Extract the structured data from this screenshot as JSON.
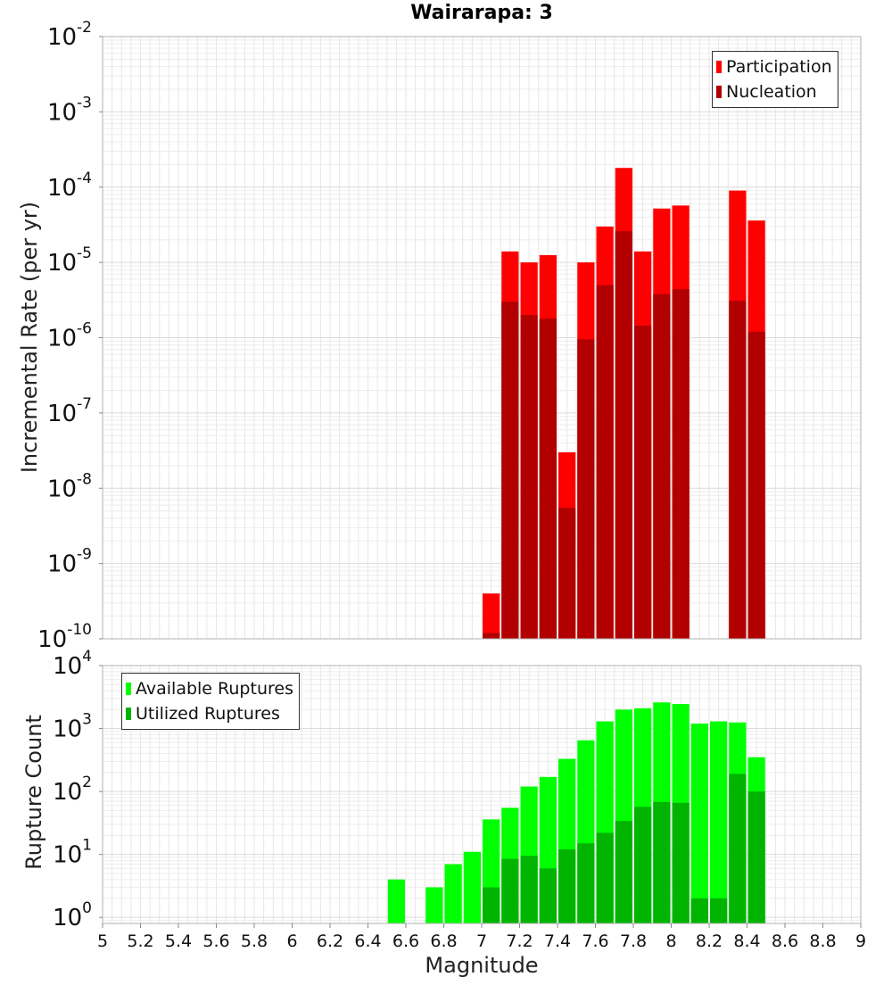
{
  "chart_data": [
    {
      "type": "bar",
      "title": "Wairarapa: 3",
      "ylabel": "Incremental Rate (per yr)",
      "xlabel": "",
      "y_scale": "log",
      "ylim": [
        1e-10,
        0.01
      ],
      "y_tick_labels": [
        "10^-10",
        "10^-9",
        "10^-8",
        "10^-7",
        "10^-6",
        "10^-5",
        "10^-4",
        "10^-3",
        "10^-2"
      ],
      "xlim": [
        5,
        9
      ],
      "bin_width": 0.1,
      "grid": true,
      "legend_position": "top-right",
      "colors": {
        "Participation": "#ff0000",
        "Nucleation": "#b20000"
      },
      "x": [
        7.05,
        7.15,
        7.25,
        7.35,
        7.45,
        7.55,
        7.65,
        7.75,
        7.85,
        7.95,
        8.05,
        8.35,
        8.45
      ],
      "series": [
        {
          "name": "Participation",
          "values": [
            4e-10,
            1.4e-05,
            1e-05,
            1.25e-05,
            3e-08,
            1e-05,
            3e-05,
            0.00018,
            1.4e-05,
            5.2e-05,
            5.7e-05,
            9e-05,
            3.6e-05
          ]
        },
        {
          "name": "Nucleation",
          "values": [
            1.2e-10,
            3e-06,
            2e-06,
            1.8e-06,
            5.5e-09,
            9.5e-07,
            5e-06,
            2.6e-05,
            1.45e-06,
            3.8e-06,
            4.4e-06,
            3.1e-06,
            1.2e-06
          ]
        }
      ]
    },
    {
      "type": "bar",
      "ylabel": "Rupture Count",
      "xlabel": "Magnitude",
      "y_scale": "log",
      "ylim": [
        0.8,
        10000
      ],
      "y_tick_labels": [
        "10^0",
        "10^1",
        "10^2",
        "10^3",
        "10^4"
      ],
      "xlim": [
        5,
        9
      ],
      "x_tick_labels": [
        "5",
        "5.2",
        "5.4",
        "5.6",
        "5.8",
        "6",
        "6.2",
        "6.4",
        "6.6",
        "6.8",
        "7",
        "7.2",
        "7.4",
        "7.6",
        "7.8",
        "8",
        "8.2",
        "8.4",
        "8.6",
        "8.8",
        "9"
      ],
      "bin_width": 0.1,
      "grid": true,
      "legend_position": "top-left",
      "colors": {
        "Available Ruptures": "#00ff00",
        "Utilized Ruptures": "#00b400"
      },
      "x": [
        6.55,
        6.75,
        6.85,
        6.95,
        7.05,
        7.15,
        7.25,
        7.35,
        7.45,
        7.55,
        7.65,
        7.75,
        7.85,
        7.95,
        8.05,
        8.15,
        8.25,
        8.35,
        8.45
      ],
      "series": [
        {
          "name": "Available Ruptures",
          "values": [
            4,
            3,
            7,
            11,
            36,
            55,
            120,
            170,
            330,
            650,
            1300,
            2000,
            2100,
            2600,
            2450,
            1200,
            1300,
            1250,
            350
          ]
        },
        {
          "name": "Utilized Ruptures",
          "values": [
            null,
            null,
            null,
            null,
            3,
            8.5,
            9.5,
            6,
            12,
            15,
            22,
            34,
            57,
            68,
            66,
            2,
            2,
            190,
            100
          ]
        }
      ]
    }
  ]
}
